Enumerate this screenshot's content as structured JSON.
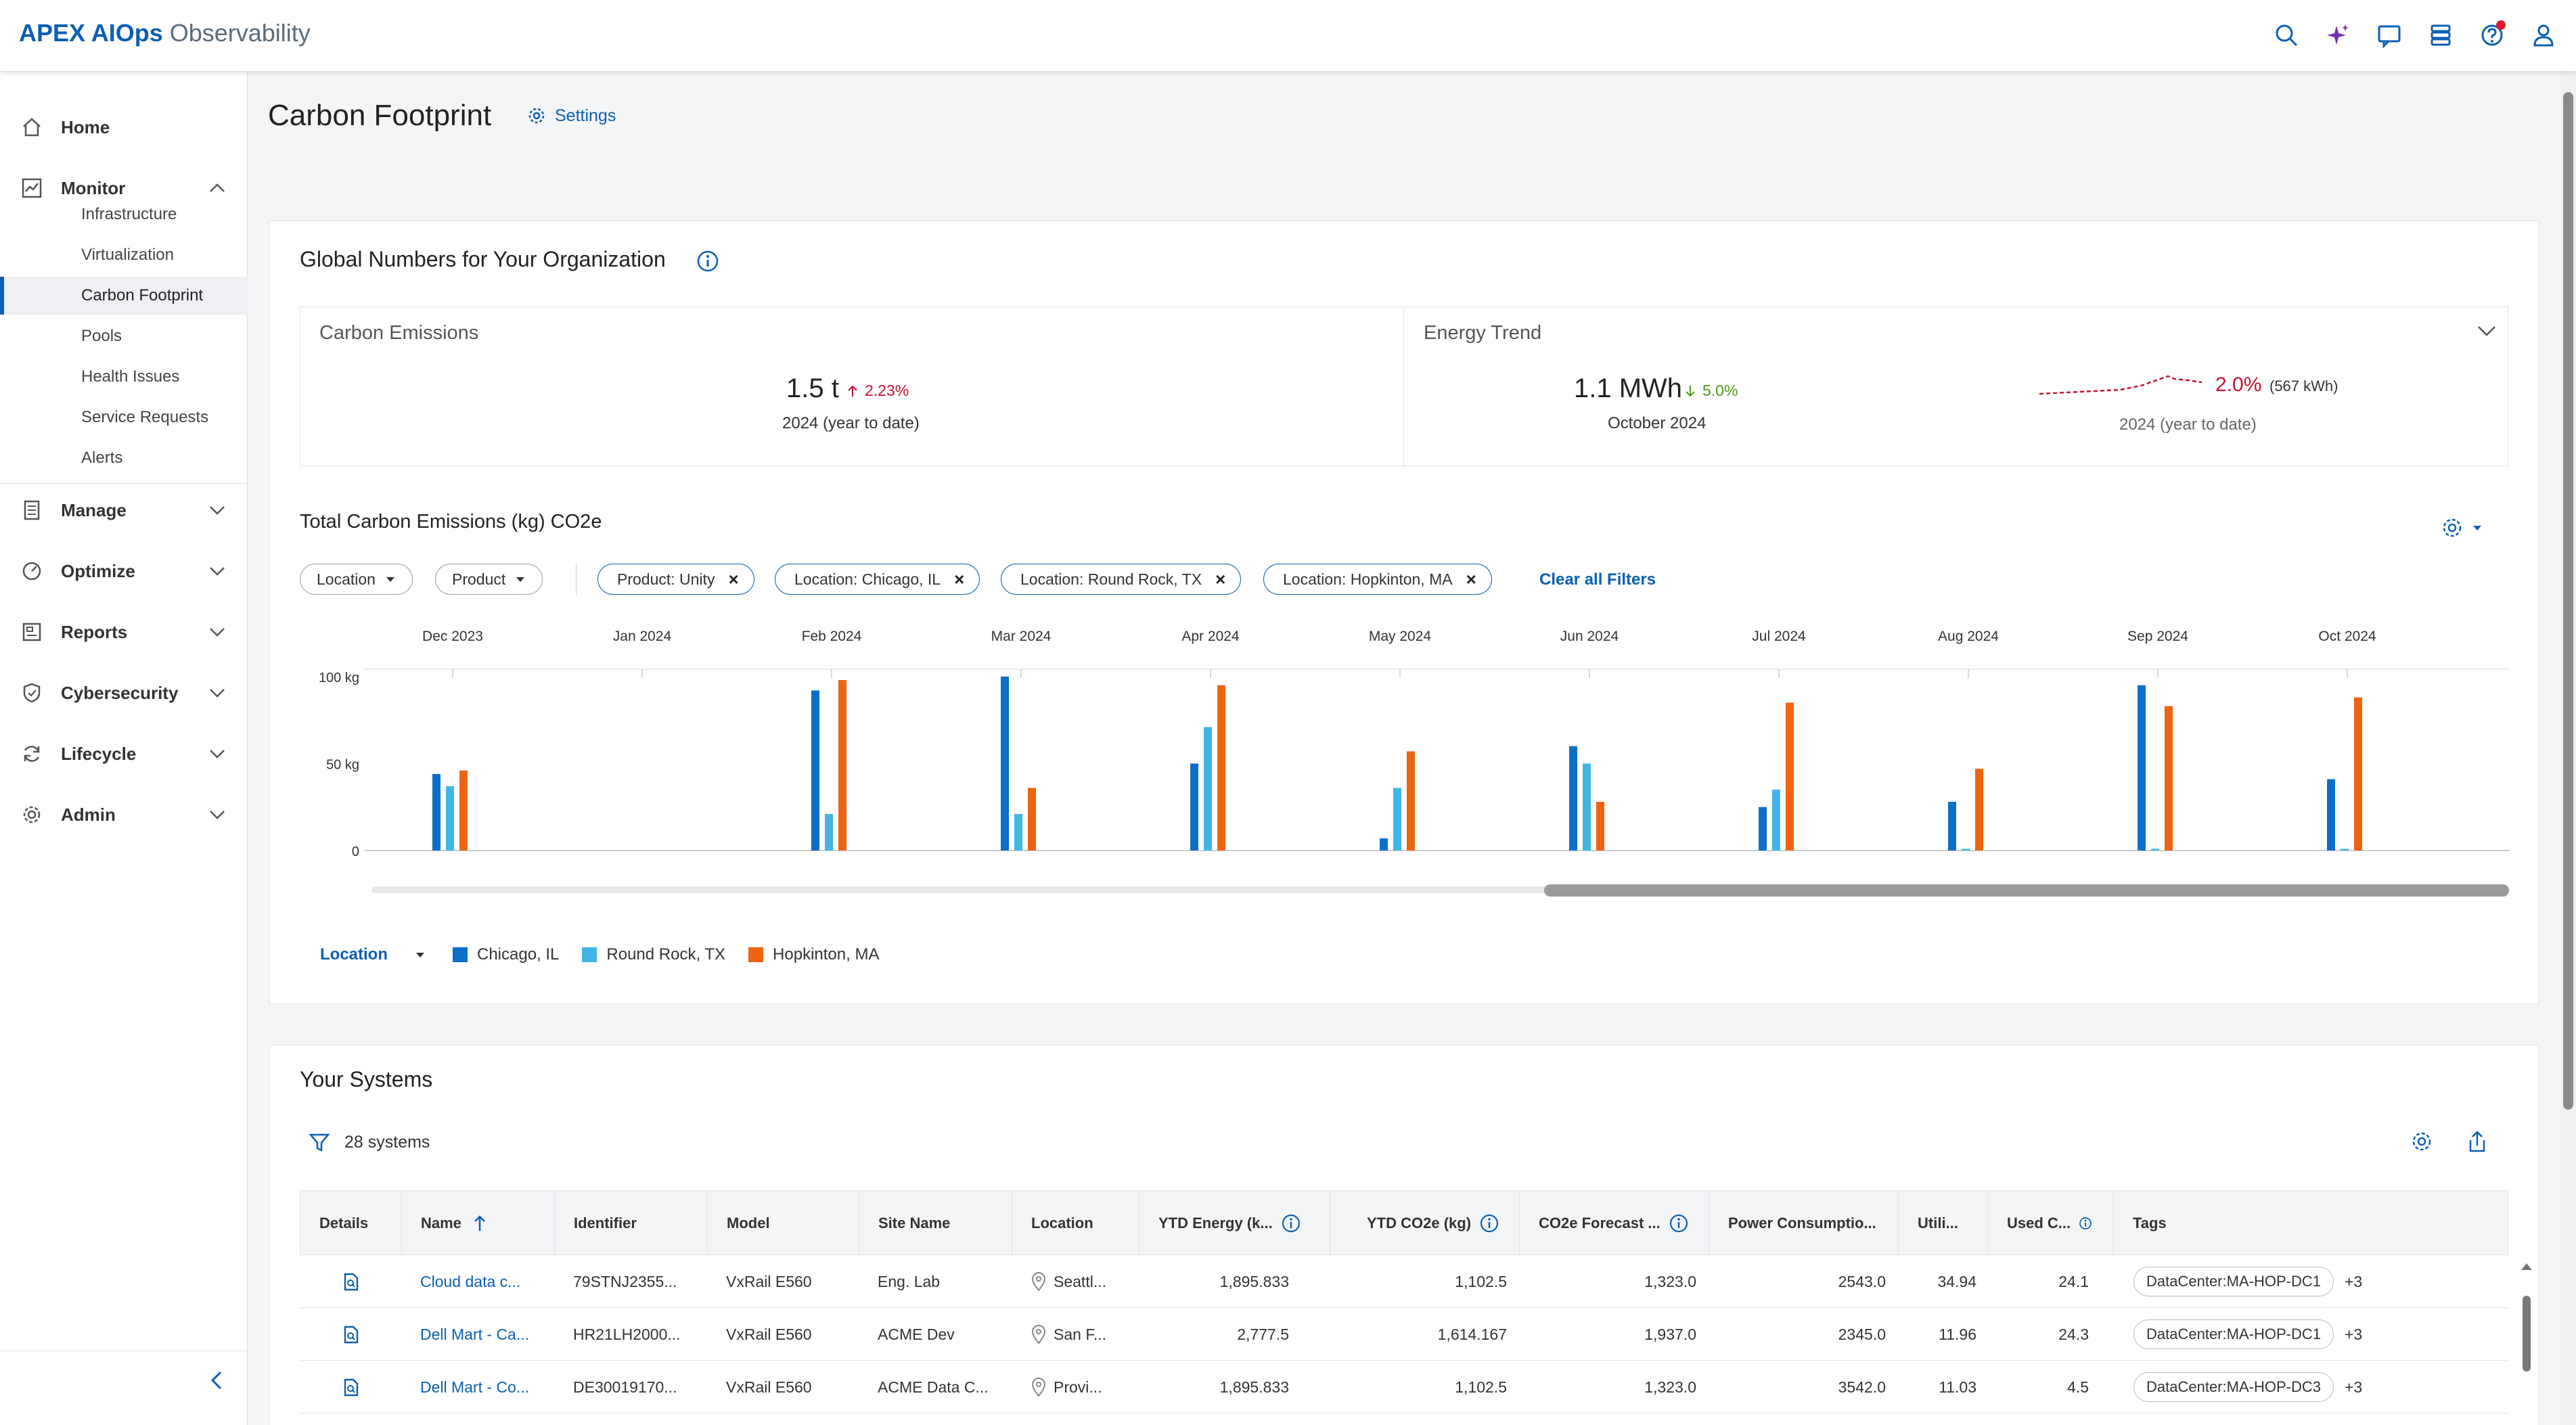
{
  "app": {
    "brand_strong": "APEX AIOps",
    "brand_light": " Observability"
  },
  "header_icons": [
    "search-icon",
    "sparkle-ai-icon",
    "chat-icon",
    "storage-stack-icon",
    "help-icon",
    "user-icon"
  ],
  "sidebar": {
    "home": "Home",
    "monitor": "Monitor",
    "monitor_items": [
      "Infrastructure",
      "Virtualization",
      "Carbon Footprint",
      "Pools",
      "Health Issues",
      "Service Requests",
      "Alerts"
    ],
    "active_item": "Carbon Footprint",
    "sections": [
      "Manage",
      "Optimize",
      "Reports",
      "Cybersecurity",
      "Lifecycle",
      "Admin"
    ]
  },
  "page": {
    "title": "Carbon Footprint",
    "settings_label": "Settings"
  },
  "global": {
    "title": "Global Numbers for Your Organization",
    "carbon": {
      "label": "Carbon Emissions",
      "value": "1.5 t",
      "delta": "2.23%",
      "period": "2024 (year to date)"
    },
    "energy": {
      "label": "Energy Trend",
      "value": "1.1 MWh",
      "delta": "5.0%",
      "period": "October 2024",
      "trend_pct": "2.0%",
      "trend_kwh": "(567 kWh)",
      "trend_period": "2024 (year to date)"
    }
  },
  "emissions": {
    "title": "Total Carbon Emissions (kg) CO2e",
    "filters": [
      "Location",
      "Product"
    ],
    "chips": [
      "Product: Unity",
      "Location: Chicago, IL",
      "Location: Round Rock, TX",
      "Location: Hopkinton, MA"
    ],
    "clear_all": "Clear all Filters",
    "legend_selector": "Location"
  },
  "colors": {
    "chicago": "#0b6fc9",
    "roundrock": "#41b6e6",
    "hopkinton": "#ee6411",
    "accent": "#0b5fb3"
  },
  "chart_data": {
    "type": "bar",
    "categories": [
      "Dec 2023",
      "Jan 2024",
      "Feb 2024",
      "Mar 2024",
      "Apr 2024",
      "May 2024",
      "Jun 2024",
      "Jul 2024",
      "Aug 2024",
      "Sep 2024",
      "Oct 2024"
    ],
    "series": [
      {
        "name": "Chicago, IL",
        "values": [
          44,
          0,
          92,
          100,
          50,
          7,
          60,
          25,
          28,
          95,
          41
        ]
      },
      {
        "name": "Round Rock, TX",
        "values": [
          37,
          0,
          21,
          21,
          71,
          36,
          50,
          35,
          1,
          1,
          1
        ]
      },
      {
        "name": "Hopkinton, MA",
        "values": [
          46,
          0,
          98,
          36,
          95,
          57,
          28,
          85,
          47,
          83,
          88
        ]
      }
    ],
    "ylabel": "",
    "yticks": [
      "0",
      "50 kg",
      "100 kg"
    ],
    "ylim": [
      0,
      105
    ],
    "legend": "bottom-left",
    "grid": false
  },
  "systems": {
    "title": "Your Systems",
    "count": "28 systems",
    "columns": [
      "Details",
      "Name",
      "Identifier",
      "Model",
      "Site Name",
      "Location",
      "YTD Energy (k...",
      "YTD CO2e (kg)",
      "CO2e Forecast ...",
      "Power Consumptio...",
      "Utili...",
      "Used C...",
      "Tags"
    ],
    "rows": [
      {
        "name": "Cloud data c...",
        "identifier": "79STNJ2355...",
        "model": "VxRail E560",
        "site": "Eng. Lab",
        "location": "Seattl...",
        "energy": "1,895.833",
        "co2e": "1,102.5",
        "forecast": "1,323.0",
        "power": "2543.0",
        "util": "34.94",
        "used": "24.1",
        "tag": "DataCenter:MA-HOP-DC1",
        "more": "+3"
      },
      {
        "name": "Dell Mart - Ca...",
        "identifier": "HR21LH2000...",
        "model": "VxRail E560",
        "site": "ACME Dev",
        "location": "San F...",
        "energy": "2,777.5",
        "co2e": "1,614.167",
        "forecast": "1,937.0",
        "power": "2345.0",
        "util": "11.96",
        "used": "24.3",
        "tag": "DataCenter:MA-HOP-DC1",
        "more": "+3"
      },
      {
        "name": "Dell Mart - Co...",
        "identifier": "DE30019170...",
        "model": "VxRail E560",
        "site": "ACME Data C...",
        "location": "Provi...",
        "energy": "1,895.833",
        "co2e": "1,102.5",
        "forecast": "1,323.0",
        "power": "3542.0",
        "util": "11.03",
        "used": "4.5",
        "tag": "DataCenter:MA-HOP-DC3",
        "more": "+3"
      }
    ]
  }
}
